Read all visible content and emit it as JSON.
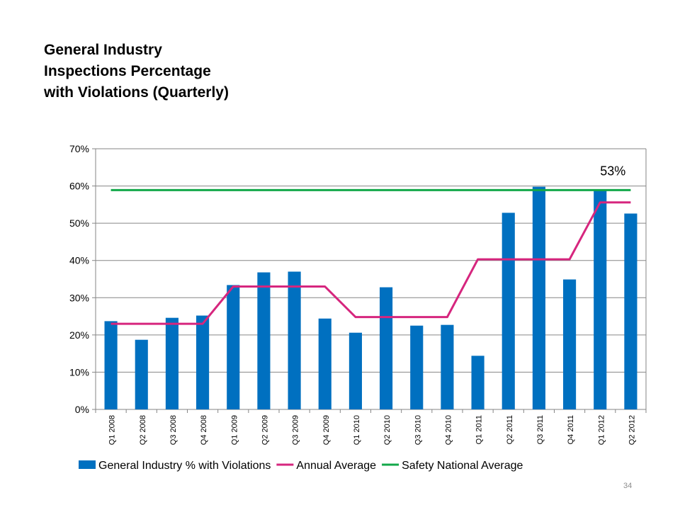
{
  "title_lines": [
    "General Industry",
    "Inspections Percentage",
    "with Violations (Quarterly)"
  ],
  "page_number": "34",
  "chart_data": {
    "type": "bar",
    "categories": [
      "Q1 2008",
      "Q2 2008",
      "Q3 2008",
      "Q4 2008",
      "Q1 2009",
      "Q2 2009",
      "Q3 2009",
      "Q4 2009",
      "Q1 2010",
      "Q2 2010",
      "Q3 2010",
      "Q4 2010",
      "Q1 2011",
      "Q2 2011",
      "Q3 2011",
      "Q4 2011",
      "Q1 2012",
      "Q2 2012"
    ],
    "series": [
      {
        "name": "General Industry % with Violations",
        "kind": "bar",
        "color": "#0070C0",
        "values": [
          23.7,
          18.7,
          24.6,
          25.2,
          33.4,
          36.8,
          37.0,
          24.4,
          20.6,
          32.8,
          22.5,
          22.7,
          14.4,
          52.8,
          59.8,
          34.9,
          59.0,
          52.6
        ]
      },
      {
        "name": "Annual Average",
        "kind": "line",
        "color": "#D6267E",
        "values": [
          23,
          23,
          23,
          23,
          33,
          33,
          33,
          33,
          24.8,
          24.8,
          24.8,
          24.8,
          40.3,
          40.3,
          40.3,
          40.3,
          55.6,
          55.6
        ]
      },
      {
        "name": "Safety National Average",
        "kind": "line",
        "color": "#13A84A",
        "values": [
          58.9,
          58.9,
          58.9,
          58.9,
          58.9,
          58.9,
          58.9,
          58.9,
          58.9,
          58.9,
          58.9,
          58.9,
          58.9,
          58.9,
          58.9,
          58.9,
          58.9,
          58.9
        ]
      }
    ],
    "ylim": [
      0,
      70
    ],
    "yticks": [
      0,
      10,
      20,
      30,
      40,
      50,
      60,
      70
    ],
    "ytick_labels": [
      "0%",
      "10%",
      "20%",
      "30%",
      "40%",
      "50%",
      "60%",
      "70%"
    ],
    "annotation": {
      "text": "53%",
      "category_index": 16,
      "y": 64
    },
    "grid": true,
    "legend_position": "bottom"
  }
}
